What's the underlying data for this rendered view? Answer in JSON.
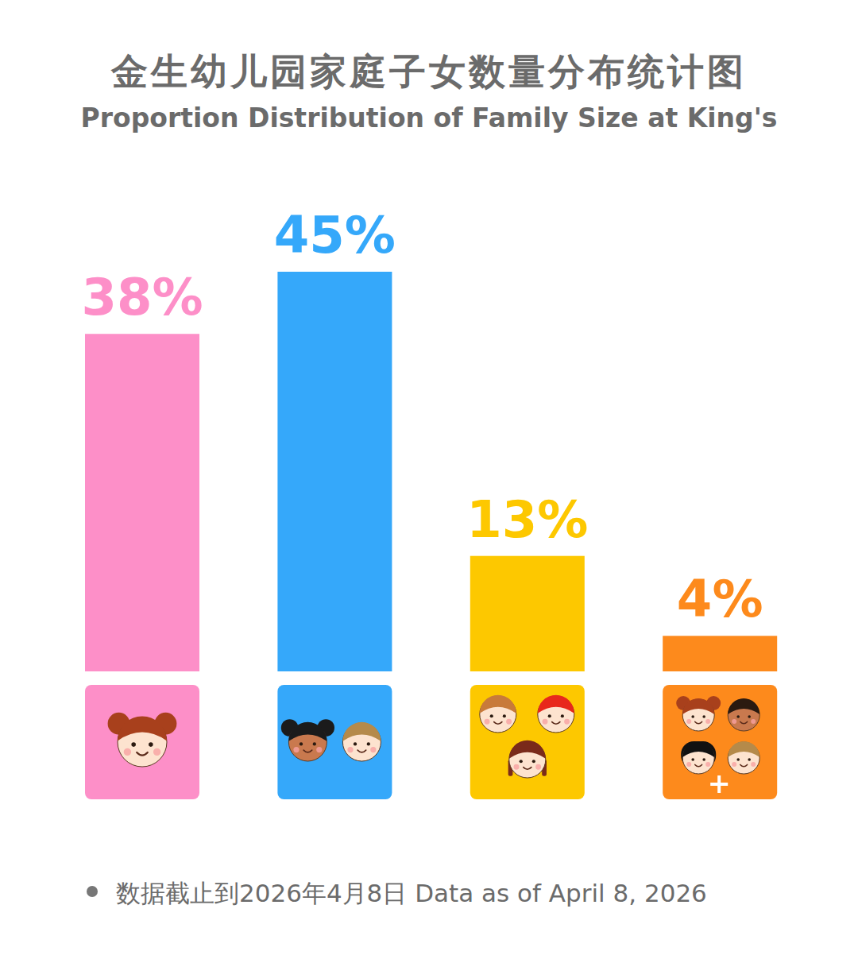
{
  "chart_data": {
    "type": "bar",
    "title": "金生幼儿园家庭子女数量分布统计图",
    "subtitle": "Proportion Distribution of Family Size at King's",
    "categories": [
      null,
      null,
      null,
      null
    ],
    "values": [
      38,
      45,
      13,
      4
    ],
    "value_labels": [
      "38%",
      "45%",
      "13%",
      "4%"
    ],
    "colors": [
      "#fd8fc8",
      "#35a8fa",
      "#fdc800",
      "#fd8a1c"
    ],
    "ylim": [
      0,
      45
    ],
    "data_labels": true,
    "tick_labels": false,
    "grid": false,
    "footnote": "数据截止到2026年4月8日 Data as of April 8, 2026"
  }
}
